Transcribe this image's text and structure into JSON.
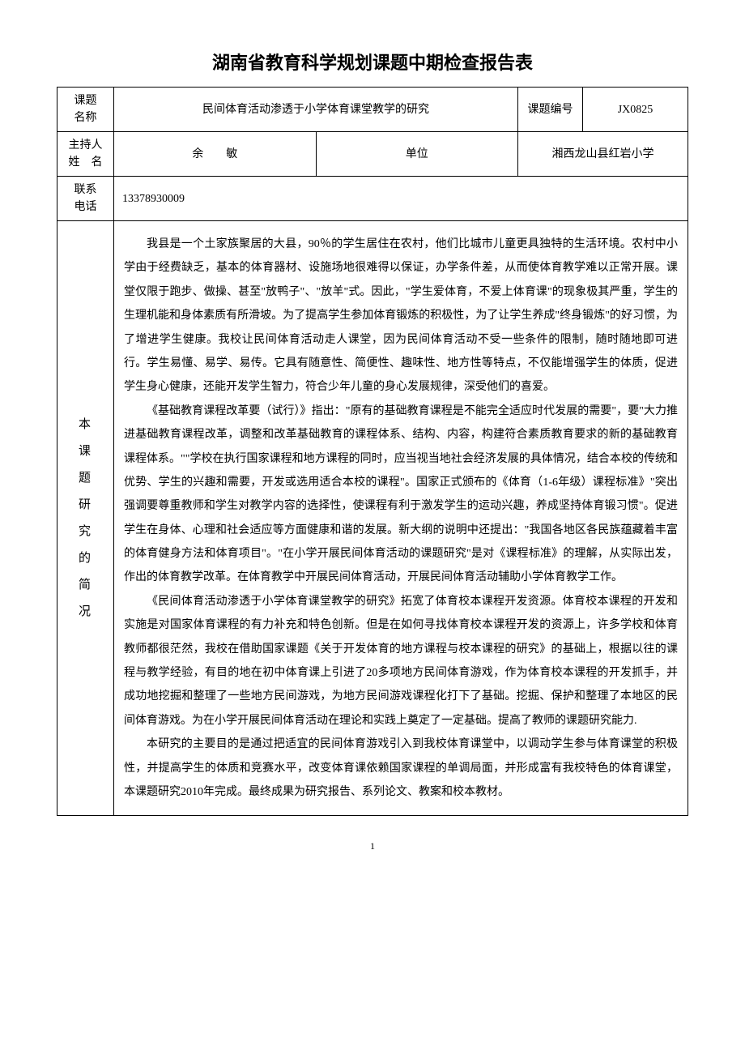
{
  "title": "湖南省教育科学规划课题中期检查报告表",
  "fields": {
    "topic_name_label": "课题\n名称",
    "topic_name": "民间体育活动渗透于小学体育课堂教学的研究",
    "topic_code_label": "课题编号",
    "topic_code": "JX0825",
    "host_label": "主持人\n姓　名",
    "host_name": "余　　敏",
    "unit_label": "单位",
    "unit_name": "湘西龙山县红岩小学",
    "phone_label": "联系\n电话",
    "phone": "13378930009",
    "overview_label": "本课题研究的简况"
  },
  "overview_paragraphs": [
    "我县是一个土家族聚居的大县，90％的学生居住在农村，他们比城市儿童更具独特的生活环境。农村中小学由于经费缺乏，基本的体育器材、设施场地很难得以保证，办学条件差，从而使体育教学难以正常开展。课堂仅限于跑步、做操、甚至\"放鸭子\"、\"放羊\"式。因此，\"学生爱体育，不爱上体育课\"的现象极其严重，学生的生理机能和身体素质有所滑坡。为了提高学生参加体育锻炼的积极性，为了让学生养成\"终身锻炼\"的好习惯，为了增进学生健康。我校让民间体育活动走人课堂，因为民间体育活动不受一些条件的限制，随时随地即可进行。学生易懂、易学、易传。它具有随意性、简便性、趣味性、地方性等特点，不仅能增强学生的体质，促进学生身心健康，还能开发学生智力，符合少年儿童的身心发展规律，深受他们的喜爱。",
    "《基础教育课程改革要（试行）》指出：\"原有的基础教育课程是不能完全适应时代发展的需要\"，要\"大力推进基础教育课程改革，调整和改革基础教育的课程体系、结构、内容，构建符合素质教育要求的新的基础教育课程体系。\"\"学校在执行国家课程和地方课程的同时，应当视当地社会经济发展的具体情况，结合本校的传统和优势、学生的兴趣和需要，开发或选用适合本校的课程\"。国家正式颁布的《体育（1-6年级）课程标准》\"突出强调要尊重教师和学生对教学内容的选择性，使课程有利于激发学生的运动兴趣，养成坚持体育锻习惯\"。促进学生在身体、心理和社会适应等方面健康和谐的发展。新大纲的说明中还提出：\"我国各地区各民族蕴藏着丰富的体育健身方法和体育项目\"。\"在小学开展民间体育活动的课题研究\"是对《课程标准》的理解，从实际出发，作出的体育教学改革。在体育教学中开展民间体育活动，开展民间体育活动辅助小学体育教学工作。",
    "《民间体育活动渗透于小学体育课堂教学的研究》拓宽了体育校本课程开发资源。体育校本课程的开发和实施是对国家体育课程的有力补充和特色创新。但是在如何寻找体育校本课程开发的资源上，许多学校和体育教师都很茫然，我校在借助国家课题《关于开发体育的地方课程与校本课程的研究》的基础上，根据以往的课程与教学经验，有目的地在初中体育课上引进了20多项地方民间体育游戏，作为体育校本课程的开发抓手，并成功地挖掘和整理了一些地方民间游戏，为地方民间游戏课程化打下了基础。挖掘、保护和整理了本地区的民间体育游戏。为在小学开展民间体育活动在理论和实践上奠定了一定基础。提高了教师的课题研究能力.",
    "本研究的主要目的是通过把适宜的民间体育游戏引入到我校体育课堂中，以调动学生参与体育课堂的积极性，并提高学生的体质和竞赛水平，改变体育课依赖国家课程的单调局面，并形成富有我校特色的体育课堂，本课题研究2010年完成。最终成果为研究报告、系列论文、教案和校本教材。"
  ],
  "page_number": "1"
}
